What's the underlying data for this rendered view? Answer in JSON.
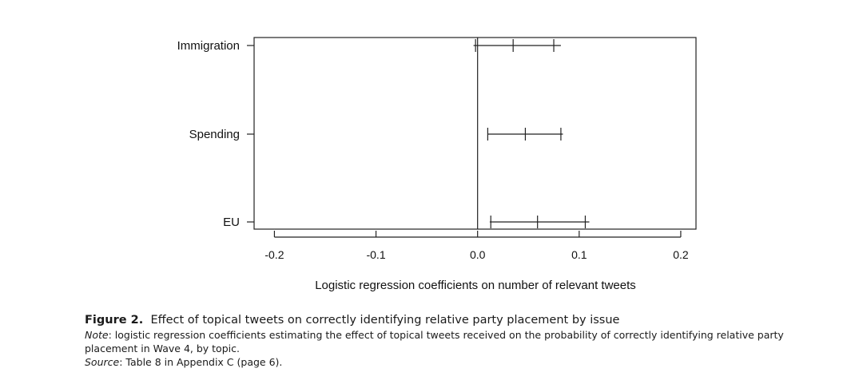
{
  "chart_data": {
    "type": "interval",
    "categories": [
      "Immigration",
      "Spending",
      "EU"
    ],
    "estimates": [
      0.035,
      0.047,
      0.059
    ],
    "ci_lower": [
      -0.004,
      0.01,
      0.012
    ],
    "ci_upper": [
      0.082,
      0.084,
      0.11
    ],
    "inner_lower": [
      -0.002,
      0.01,
      0.013
    ],
    "inner_upper": [
      0.075,
      0.082,
      0.106
    ],
    "x_ticks": [
      "-0.2",
      "-0.1",
      "0.0",
      "0.1",
      "0.2"
    ],
    "x_tick_values": [
      -0.2,
      -0.1,
      0.0,
      0.1,
      0.2
    ],
    "xlim": [
      -0.22,
      0.215
    ],
    "xlabel": "Logistic regression coefficients on number of relevant tweets",
    "ylabel": "",
    "reference_line": 0.0,
    "grid": false
  },
  "caption": {
    "figure_label": "Figure 2.",
    "title": "Effect of topical tweets on correctly identifying relative party placement by issue",
    "note_label": "Note",
    "note_text": ": logistic regression coefficients estimating the effect of topical tweets received on the probability of correctly identifying relative party placement in Wave 4, by topic.",
    "source_label": "Source",
    "source_text": ": Table 8 in Appendix C (page 6)."
  }
}
